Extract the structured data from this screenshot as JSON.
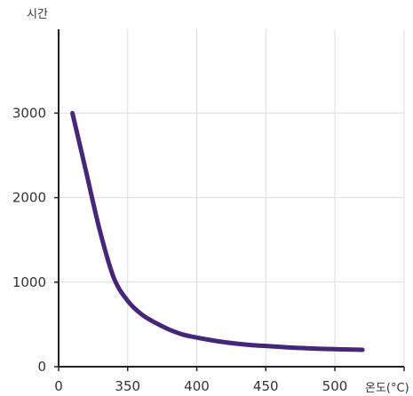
{
  "chart_data": {
    "type": "line",
    "title": "",
    "xlabel": "온도(°C)",
    "ylabel": "시간",
    "xlim": [
      0,
      550
    ],
    "ylim": [
      0,
      4000
    ],
    "x_origin_label": "0",
    "x_ticks": [
      350,
      400,
      450,
      500
    ],
    "y_ticks": [
      0,
      1000,
      2000,
      3000
    ],
    "grid": true,
    "series": [
      {
        "color": "#45267a",
        "points": [
          [
            310,
            3000
          ],
          [
            320,
            2300
          ],
          [
            330,
            1600
          ],
          [
            340,
            1050
          ],
          [
            350,
            780
          ],
          [
            360,
            620
          ],
          [
            370,
            520
          ],
          [
            380,
            440
          ],
          [
            390,
            380
          ],
          [
            400,
            345
          ],
          [
            410,
            315
          ],
          [
            420,
            290
          ],
          [
            430,
            270
          ],
          [
            440,
            255
          ],
          [
            450,
            245
          ],
          [
            460,
            235
          ],
          [
            470,
            225
          ],
          [
            480,
            218
          ],
          [
            490,
            212
          ],
          [
            500,
            207
          ],
          [
            510,
            203
          ],
          [
            520,
            200
          ]
        ]
      }
    ]
  }
}
